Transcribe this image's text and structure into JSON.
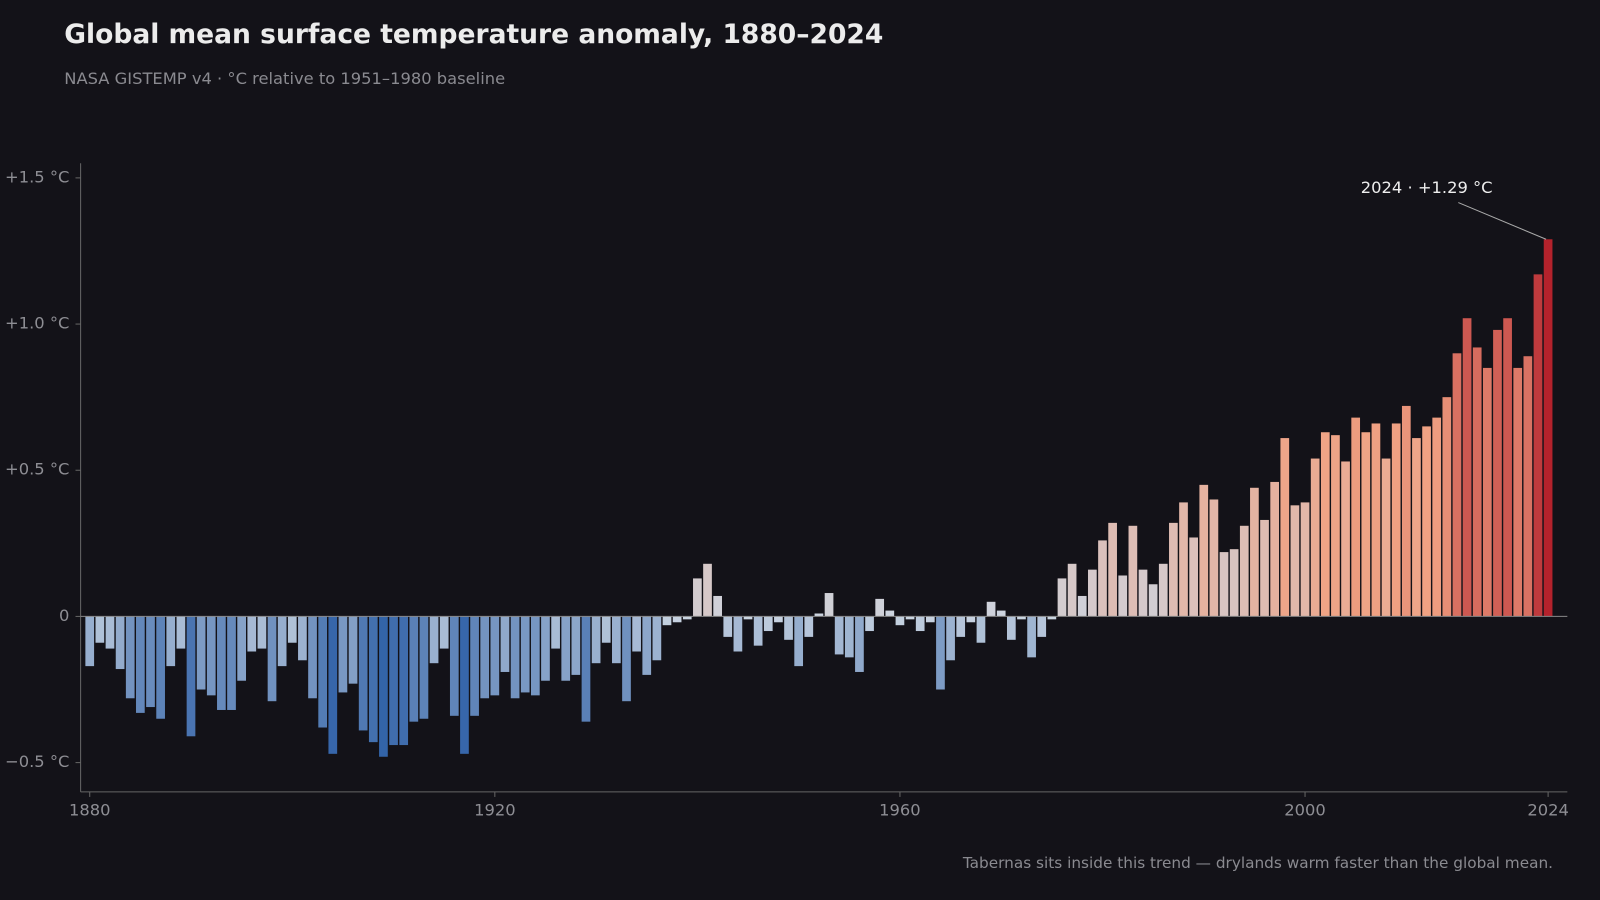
{
  "chart_data": {
    "type": "bar",
    "title": "Global mean surface temperature anomaly, 1880–2024",
    "subtitle": "NASA GISTEMP v4 · °C relative to 1951–1980 baseline",
    "note": "Tabernas sits inside this trend — drylands warm faster than the global mean.",
    "annotation": {
      "text": "2024 · +1.29 °C",
      "x": 2024,
      "y": 1.29
    },
    "x": [
      1880,
      1881,
      1882,
      1883,
      1884,
      1885,
      1886,
      1887,
      1888,
      1889,
      1890,
      1891,
      1892,
      1893,
      1894,
      1895,
      1896,
      1897,
      1898,
      1899,
      1900,
      1901,
      1902,
      1903,
      1904,
      1905,
      1906,
      1907,
      1908,
      1909,
      1910,
      1911,
      1912,
      1913,
      1914,
      1915,
      1916,
      1917,
      1918,
      1919,
      1920,
      1921,
      1922,
      1923,
      1924,
      1925,
      1926,
      1927,
      1928,
      1929,
      1930,
      1931,
      1932,
      1933,
      1934,
      1935,
      1936,
      1937,
      1938,
      1939,
      1940,
      1941,
      1942,
      1943,
      1944,
      1945,
      1946,
      1947,
      1948,
      1949,
      1950,
      1951,
      1952,
      1953,
      1954,
      1955,
      1956,
      1957,
      1958,
      1959,
      1960,
      1961,
      1962,
      1963,
      1964,
      1965,
      1966,
      1967,
      1968,
      1969,
      1970,
      1971,
      1972,
      1973,
      1974,
      1975,
      1976,
      1977,
      1978,
      1979,
      1980,
      1981,
      1982,
      1983,
      1984,
      1985,
      1986,
      1987,
      1988,
      1989,
      1990,
      1991,
      1992,
      1993,
      1994,
      1995,
      1996,
      1997,
      1998,
      1999,
      2000,
      2001,
      2002,
      2003,
      2004,
      2005,
      2006,
      2007,
      2008,
      2009,
      2010,
      2011,
      2012,
      2013,
      2014,
      2015,
      2016,
      2017,
      2018,
      2019,
      2020,
      2021,
      2022,
      2023,
      2024
    ],
    "values": [
      -0.17,
      -0.09,
      -0.11,
      -0.18,
      -0.28,
      -0.33,
      -0.31,
      -0.35,
      -0.17,
      -0.11,
      -0.41,
      -0.25,
      -0.27,
      -0.32,
      -0.32,
      -0.22,
      -0.12,
      -0.11,
      -0.29,
      -0.17,
      -0.09,
      -0.15,
      -0.28,
      -0.38,
      -0.47,
      -0.26,
      -0.23,
      -0.39,
      -0.43,
      -0.48,
      -0.44,
      -0.44,
      -0.36,
      -0.35,
      -0.16,
      -0.11,
      -0.34,
      -0.47,
      -0.34,
      -0.28,
      -0.27,
      -0.19,
      -0.28,
      -0.26,
      -0.27,
      -0.22,
      -0.11,
      -0.22,
      -0.2,
      -0.36,
      -0.16,
      -0.09,
      -0.16,
      -0.29,
      -0.12,
      -0.2,
      -0.15,
      -0.03,
      -0.02,
      -0.01,
      0.13,
      0.18,
      0.07,
      -0.07,
      -0.12,
      -0.01,
      -0.1,
      -0.05,
      -0.02,
      -0.08,
      -0.17,
      -0.07,
      0.01,
      0.08,
      -0.13,
      -0.14,
      -0.19,
      -0.05,
      0.06,
      0.02,
      -0.03,
      -0.01,
      -0.05,
      -0.02,
      -0.25,
      -0.15,
      -0.07,
      -0.02,
      -0.09,
      0.05,
      0.02,
      -0.08,
      -0.01,
      -0.14,
      -0.07,
      -0.01,
      0.13,
      0.18,
      0.07,
      0.16,
      0.26,
      0.32,
      0.14,
      0.31,
      0.16,
      0.11,
      0.18,
      0.32,
      0.39,
      0.27,
      0.45,
      0.4,
      0.22,
      0.23,
      0.31,
      0.44,
      0.33,
      0.46,
      0.61,
      0.38,
      0.39,
      0.54,
      0.63,
      0.62,
      0.53,
      0.68,
      0.63,
      0.66,
      0.54,
      0.66,
      0.72,
      0.61,
      0.65,
      0.68,
      0.75,
      0.9,
      1.02,
      0.92,
      0.85,
      0.98,
      1.02,
      0.85,
      0.89,
      1.17,
      1.29
    ],
    "colormap": {
      "domain": [
        -0.5,
        0,
        1.3
      ],
      "colors": [
        "#2d5fa6",
        "#ccd6e2",
        "#b3202b"
      ],
      "mid_warm": "#f0a283"
    },
    "xlim": [
      1879.1,
      2025.9
    ],
    "xticks": [
      1880,
      1920,
      1960,
      2000,
      2024
    ],
    "ylim": [
      -0.6,
      1.55
    ],
    "yticks": [
      {
        "value": -0.5,
        "label": "−0.5 °C"
      },
      0,
      {
        "value": 0.5,
        "label": "+0.5 °C"
      },
      {
        "value": 1.0,
        "label": "+1.0 °C"
      },
      {
        "value": 1.5,
        "label": "+1.5 °C"
      }
    ]
  }
}
